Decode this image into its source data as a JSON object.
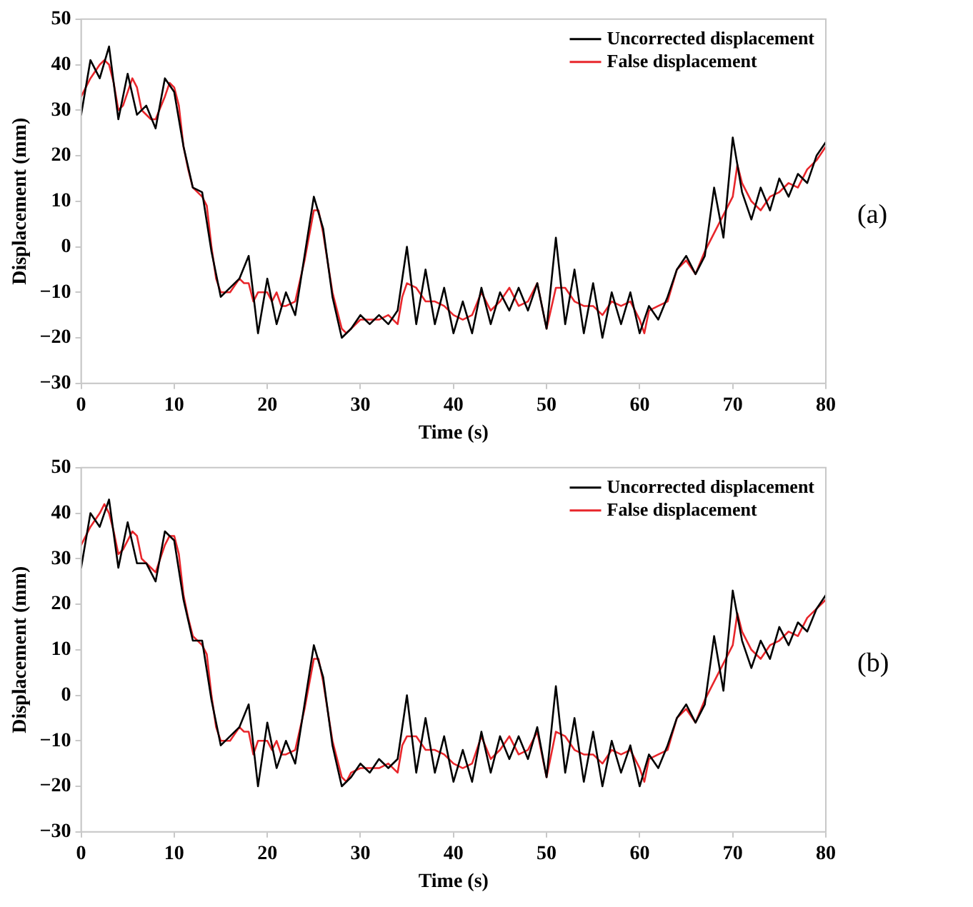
{
  "chart_data": [
    {
      "type": "line",
      "xlabel": "Time (s)",
      "ylabel": "Displacement (mm)",
      "annotations": [
        "(a)"
      ],
      "xlim": [
        0,
        80
      ],
      "xticks": [
        0,
        10,
        20,
        30,
        40,
        50,
        60,
        70,
        80
      ],
      "ylim": [
        -30,
        50
      ],
      "yticks": [
        -30,
        -20,
        -10,
        0,
        10,
        20,
        30,
        40,
        50
      ],
      "grid": false,
      "legend": "top right",
      "marker": "none",
      "line_style": "solid",
      "series": [
        {
          "name": "Uncorrected displacement",
          "color": "#000000",
          "x": [
            0,
            1,
            2,
            3,
            4,
            5,
            6,
            7,
            8,
            9,
            10,
            11,
            12,
            13,
            14,
            15,
            16,
            17,
            18,
            19,
            20,
            21,
            22,
            23,
            24,
            25,
            26,
            27,
            28,
            29,
            30,
            31,
            32,
            33,
            34,
            35,
            36,
            37,
            38,
            39,
            40,
            41,
            42,
            43,
            44,
            45,
            46,
            47,
            48,
            49,
            50,
            51,
            52,
            53,
            54,
            55,
            56,
            57,
            58,
            59,
            60,
            61,
            62,
            63,
            64,
            65,
            66,
            67,
            68,
            69,
            70,
            71,
            72,
            73,
            74,
            75,
            76,
            77,
            78,
            79,
            80
          ],
          "values": [
            29,
            41,
            37,
            44,
            28,
            38,
            29,
            31,
            26,
            37,
            34,
            22,
            13,
            12,
            -1,
            -11,
            -9,
            -7,
            -2,
            -19,
            -7,
            -17,
            -10,
            -15,
            -2,
            11,
            4,
            -11,
            -20,
            -18,
            -15,
            -17,
            -15,
            -17,
            -14,
            0,
            -17,
            -5,
            -17,
            -9,
            -19,
            -12,
            -19,
            -9,
            -17,
            -10,
            -14,
            -9,
            -14,
            -8,
            -18,
            2,
            -17,
            -5,
            -19,
            -8,
            -20,
            -10,
            -17,
            -10,
            -19,
            -13,
            -16,
            -11,
            -5,
            -2,
            -6,
            -2,
            13,
            2,
            24,
            12,
            6,
            13,
            8,
            15,
            11,
            16,
            14,
            20,
            23
          ]
        },
        {
          "name": "False displacement",
          "color": "#e8262b",
          "x": [
            0,
            1,
            2,
            2.5,
            3,
            3.5,
            4,
            4.5,
            5,
            5.5,
            6,
            6.5,
            7.5,
            8,
            9,
            9.5,
            10,
            10.5,
            11,
            11.5,
            12,
            13,
            13.5,
            14,
            14.5,
            15,
            16,
            17,
            17.5,
            18,
            18.5,
            19,
            20,
            20.5,
            21,
            21.5,
            22,
            23,
            24,
            25,
            25.5,
            26,
            27,
            28,
            28.5,
            29,
            30,
            31,
            32,
            33,
            34,
            34.5,
            35,
            36,
            37,
            38,
            39,
            40,
            41,
            42,
            43,
            44,
            45,
            46,
            47,
            48,
            49,
            50,
            51,
            52,
            53,
            54,
            55,
            56,
            57,
            58,
            59,
            60,
            60.5,
            61,
            62,
            63,
            64,
            65,
            66,
            67,
            68,
            69,
            70,
            70.5,
            71,
            72,
            73,
            74,
            75,
            76,
            77,
            78,
            79,
            80
          ],
          "values": [
            33,
            37,
            40,
            41,
            40,
            36,
            30,
            31,
            34,
            37,
            35,
            30,
            28,
            28,
            33,
            36,
            35,
            31,
            22,
            17,
            13,
            11,
            9,
            0,
            -7,
            -10,
            -10,
            -7,
            -8,
            -8,
            -12,
            -10,
            -10,
            -12,
            -10,
            -13,
            -13,
            -12,
            -3,
            8,
            8,
            3,
            -10,
            -18,
            -19,
            -18,
            -16,
            -16,
            -16,
            -15,
            -17,
            -11,
            -8,
            -9,
            -12,
            -12,
            -13,
            -15,
            -16,
            -15,
            -10,
            -14,
            -12,
            -9,
            -13,
            -12,
            -8,
            -18,
            -9,
            -9,
            -12,
            -13,
            -13,
            -15,
            -12,
            -13,
            -12,
            -16,
            -19,
            -14,
            -13,
            -12,
            -5,
            -3,
            -6,
            -1,
            3,
            7,
            11,
            18,
            14,
            10,
            8,
            11,
            12,
            14,
            13,
            17,
            19,
            22
          ]
        }
      ]
    },
    {
      "type": "line",
      "xlabel": "Time (s)",
      "ylabel": "Displacement (mm)",
      "annotations": [
        "(b)"
      ],
      "xlim": [
        0,
        80
      ],
      "xticks": [
        0,
        10,
        20,
        30,
        40,
        50,
        60,
        70,
        80
      ],
      "ylim": [
        -30,
        50
      ],
      "yticks": [
        -30,
        -20,
        -10,
        0,
        10,
        20,
        30,
        40,
        50
      ],
      "grid": false,
      "legend": "top right",
      "marker": "none",
      "line_style": "solid",
      "series": [
        {
          "name": "Uncorrected displacement",
          "color": "#000000",
          "x": [
            0,
            1,
            2,
            3,
            4,
            5,
            6,
            7,
            8,
            9,
            10,
            11,
            12,
            13,
            14,
            15,
            16,
            17,
            18,
            19,
            20,
            21,
            22,
            23,
            24,
            25,
            26,
            27,
            28,
            29,
            30,
            31,
            32,
            33,
            34,
            35,
            36,
            37,
            38,
            39,
            40,
            41,
            42,
            43,
            44,
            45,
            46,
            47,
            48,
            49,
            50,
            51,
            52,
            53,
            54,
            55,
            56,
            57,
            58,
            59,
            60,
            61,
            62,
            63,
            64,
            65,
            66,
            67,
            68,
            69,
            70,
            71,
            72,
            73,
            74,
            75,
            76,
            77,
            78,
            79,
            80
          ],
          "values": [
            28,
            40,
            37,
            43,
            28,
            38,
            29,
            29,
            25,
            36,
            34,
            21,
            12,
            12,
            -1,
            -11,
            -9,
            -7,
            -2,
            -20,
            -6,
            -16,
            -10,
            -15,
            -2,
            11,
            4,
            -11,
            -20,
            -18,
            -15,
            -17,
            -14,
            -16,
            -14,
            0,
            -17,
            -5,
            -17,
            -9,
            -19,
            -12,
            -19,
            -8,
            -17,
            -9,
            -14,
            -9,
            -14,
            -7,
            -18,
            2,
            -17,
            -5,
            -19,
            -8,
            -20,
            -10,
            -17,
            -11,
            -20,
            -13,
            -16,
            -11,
            -5,
            -2,
            -6,
            -2,
            13,
            1,
            23,
            12,
            6,
            12,
            8,
            15,
            11,
            16,
            14,
            19,
            22
          ]
        },
        {
          "name": "False displacement",
          "color": "#e8262b",
          "x": [
            0,
            1,
            2,
            2.5,
            3,
            3.5,
            4,
            4.5,
            5,
            5.5,
            6,
            6.5,
            7.5,
            8,
            9,
            9.5,
            10,
            10.5,
            11,
            11.5,
            12,
            13,
            13.5,
            14,
            14.5,
            15,
            16,
            17,
            17.5,
            18,
            18.5,
            19,
            20,
            20.5,
            21,
            21.5,
            22,
            23,
            24,
            25,
            25.5,
            26,
            27,
            28,
            28.5,
            29,
            30,
            31,
            32,
            33,
            34,
            34.5,
            35,
            36,
            37,
            38,
            39,
            40,
            41,
            42,
            43,
            44,
            45,
            46,
            47,
            48,
            49,
            50,
            51,
            52,
            53,
            54,
            55,
            56,
            57,
            58,
            59,
            60,
            60.5,
            61,
            62,
            63,
            64,
            65,
            66,
            67,
            68,
            69,
            70,
            70.5,
            71,
            72,
            73,
            74,
            75,
            76,
            77,
            78,
            79,
            80
          ],
          "values": [
            33,
            37,
            40,
            42,
            40,
            36,
            31,
            32,
            34,
            36,
            35,
            30,
            28,
            27,
            33,
            35,
            35,
            31,
            22,
            17,
            13,
            11,
            9,
            0,
            -7,
            -10,
            -10,
            -7,
            -8,
            -8,
            -13,
            -10,
            -10,
            -12,
            -10,
            -13,
            -13,
            -12,
            -3,
            8,
            8,
            3,
            -10,
            -18,
            -19,
            -17,
            -16,
            -16,
            -16,
            -15,
            -17,
            -11,
            -9,
            -9,
            -12,
            -12,
            -13,
            -15,
            -16,
            -15,
            -9,
            -14,
            -12,
            -9,
            -13,
            -12,
            -8,
            -18,
            -8,
            -9,
            -12,
            -13,
            -13,
            -15,
            -12,
            -13,
            -12,
            -16,
            -19,
            -14,
            -13,
            -12,
            -5,
            -3,
            -6,
            -1,
            3,
            7,
            11,
            18,
            14,
            10,
            8,
            11,
            12,
            14,
            13,
            17,
            19,
            21
          ]
        }
      ]
    }
  ]
}
